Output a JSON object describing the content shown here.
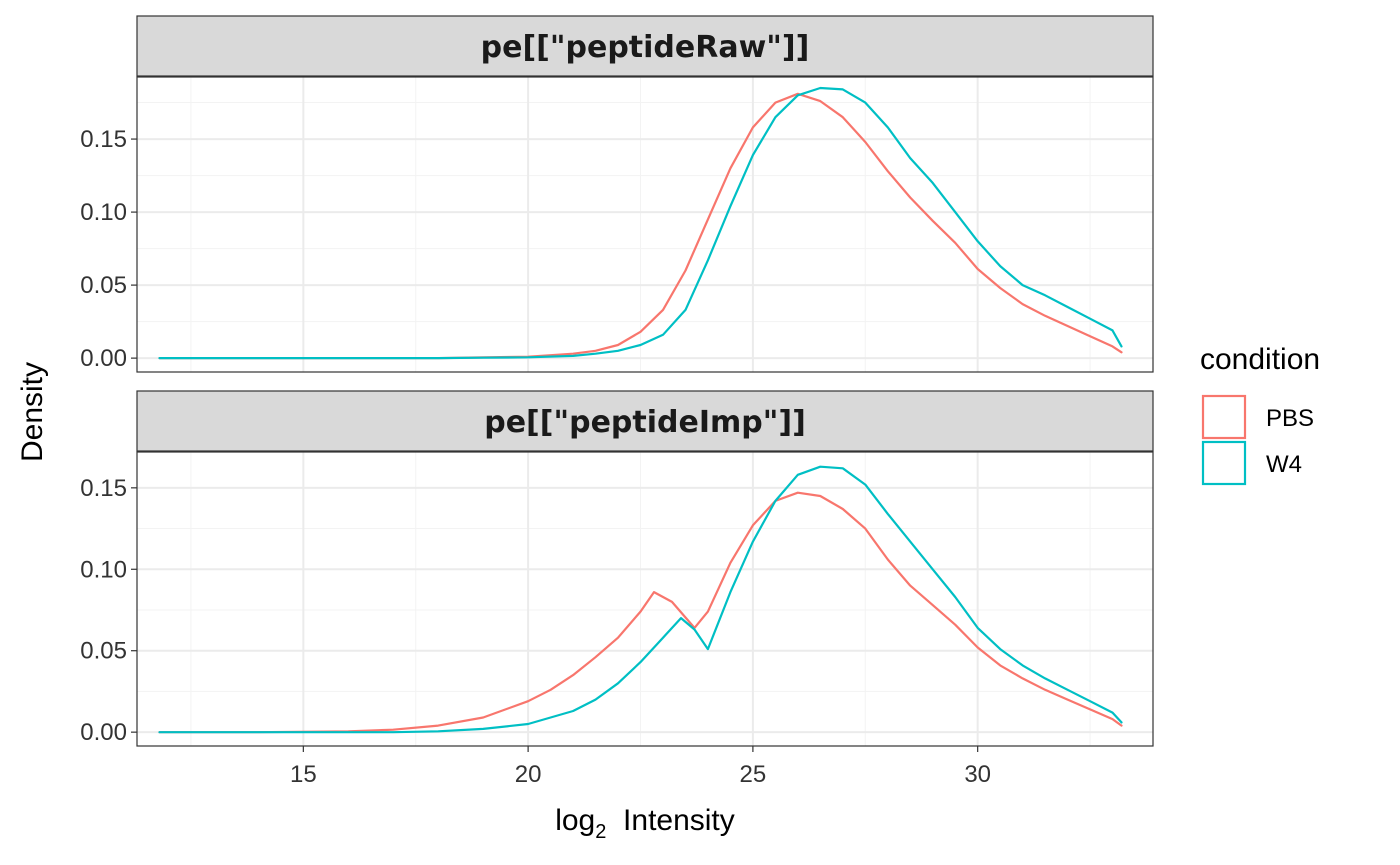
{
  "chart_data": {
    "type": "line",
    "xlabel_main": "log",
    "xlabel_sub": "2",
    "xlabel_rest": "Intensity",
    "ylabel": "Density",
    "xlim": [
      11.3,
      33.9
    ],
    "x_ticks": [
      15,
      20,
      25,
      30
    ],
    "x_tick_labels": [
      "15",
      "20",
      "25",
      "30"
    ],
    "y_ticks": [
      0,
      0.05,
      0.1,
      0.15
    ],
    "y_tick_labels": [
      "0.00",
      "0.05",
      "0.10",
      "0.15"
    ],
    "grid": true,
    "legend": {
      "title": "condition",
      "position": "right",
      "entries": [
        {
          "label": "PBS",
          "color": "#F8766D"
        },
        {
          "label": "W4",
          "color": "#00BFC4"
        }
      ]
    },
    "panels": [
      {
        "title": "pe[[\"peptideRaw\"]]",
        "ylim": [
          -0.0095,
          0.1925
        ],
        "series": [
          {
            "name": "PBS",
            "color": "#F8766D",
            "x": [
              11.8,
              14,
              16,
              18,
              19,
              20,
              21,
              21.5,
              22,
              22.5,
              23,
              23.5,
              24,
              24.5,
              25,
              25.5,
              26,
              26.5,
              27,
              27.5,
              28,
              28.5,
              29,
              29.5,
              30,
              30.5,
              31,
              31.5,
              32,
              32.5,
              33,
              33.2
            ],
            "y": [
              0,
              0,
              0,
              0,
              0.0005,
              0.001,
              0.003,
              0.005,
              0.009,
              0.018,
              0.033,
              0.06,
              0.095,
              0.13,
              0.158,
              0.175,
              0.181,
              0.176,
              0.165,
              0.148,
              0.128,
              0.11,
              0.094,
              0.079,
              0.061,
              0.048,
              0.037,
              0.029,
              0.022,
              0.015,
              0.008,
              0.004
            ]
          },
          {
            "name": "W4",
            "color": "#00BFC4",
            "x": [
              11.8,
              14,
              16,
              18,
              19,
              20,
              21,
              21.5,
              22,
              22.5,
              23,
              23.5,
              24,
              24.5,
              25,
              25.5,
              26,
              26.5,
              27,
              27.5,
              28,
              28.5,
              29,
              29.5,
              30,
              30.5,
              31,
              31.5,
              32,
              32.5,
              33,
              33.2
            ],
            "y": [
              0,
              0,
              0,
              0,
              0.0003,
              0.0006,
              0.0015,
              0.003,
              0.005,
              0.009,
              0.016,
              0.033,
              0.067,
              0.104,
              0.139,
              0.165,
              0.18,
              0.185,
              0.184,
              0.175,
              0.158,
              0.137,
              0.12,
              0.1,
              0.08,
              0.063,
              0.05,
              0.043,
              0.035,
              0.027,
              0.019,
              0.008
            ]
          }
        ]
      },
      {
        "title": "pe[[\"peptideImp\"]]",
        "ylim": [
          -0.0085,
          0.172
        ],
        "series": [
          {
            "name": "PBS",
            "color": "#F8766D",
            "x": [
              11.8,
              14,
              16,
              17,
              18,
              19,
              20,
              20.5,
              21,
              21.5,
              22,
              22.5,
              22.8,
              23.2,
              23.7,
              24,
              24.5,
              25,
              25.5,
              26,
              26.5,
              27,
              27.5,
              28,
              28.5,
              29,
              29.5,
              30,
              30.5,
              31,
              31.5,
              32,
              32.5,
              33,
              33.2
            ],
            "y": [
              0,
              0,
              0.0005,
              0.0015,
              0.004,
              0.009,
              0.019,
              0.026,
              0.035,
              0.046,
              0.058,
              0.074,
              0.086,
              0.08,
              0.064,
              0.074,
              0.104,
              0.127,
              0.142,
              0.147,
              0.145,
              0.137,
              0.125,
              0.106,
              0.09,
              0.078,
              0.066,
              0.052,
              0.041,
              0.033,
              0.026,
              0.02,
              0.014,
              0.008,
              0.004
            ]
          },
          {
            "name": "W4",
            "color": "#00BFC4",
            "x": [
              11.8,
              14,
              16,
              17,
              18,
              19,
              20,
              20.5,
              21,
              21.5,
              22,
              22.5,
              23,
              23.4,
              23.7,
              24,
              24.5,
              25,
              25.5,
              26,
              26.5,
              27,
              27.5,
              28,
              28.5,
              29,
              29.5,
              30,
              30.5,
              31,
              31.5,
              32,
              32.5,
              33,
              33.2
            ],
            "y": [
              0,
              0,
              0,
              0,
              0.0005,
              0.002,
              0.005,
              0.009,
              0.013,
              0.02,
              0.03,
              0.043,
              0.058,
              0.07,
              0.063,
              0.051,
              0.086,
              0.117,
              0.142,
              0.158,
              0.163,
              0.162,
              0.152,
              0.134,
              0.117,
              0.1,
              0.083,
              0.064,
              0.051,
              0.041,
              0.033,
              0.026,
              0.019,
              0.012,
              0.006
            ]
          }
        ]
      }
    ]
  }
}
